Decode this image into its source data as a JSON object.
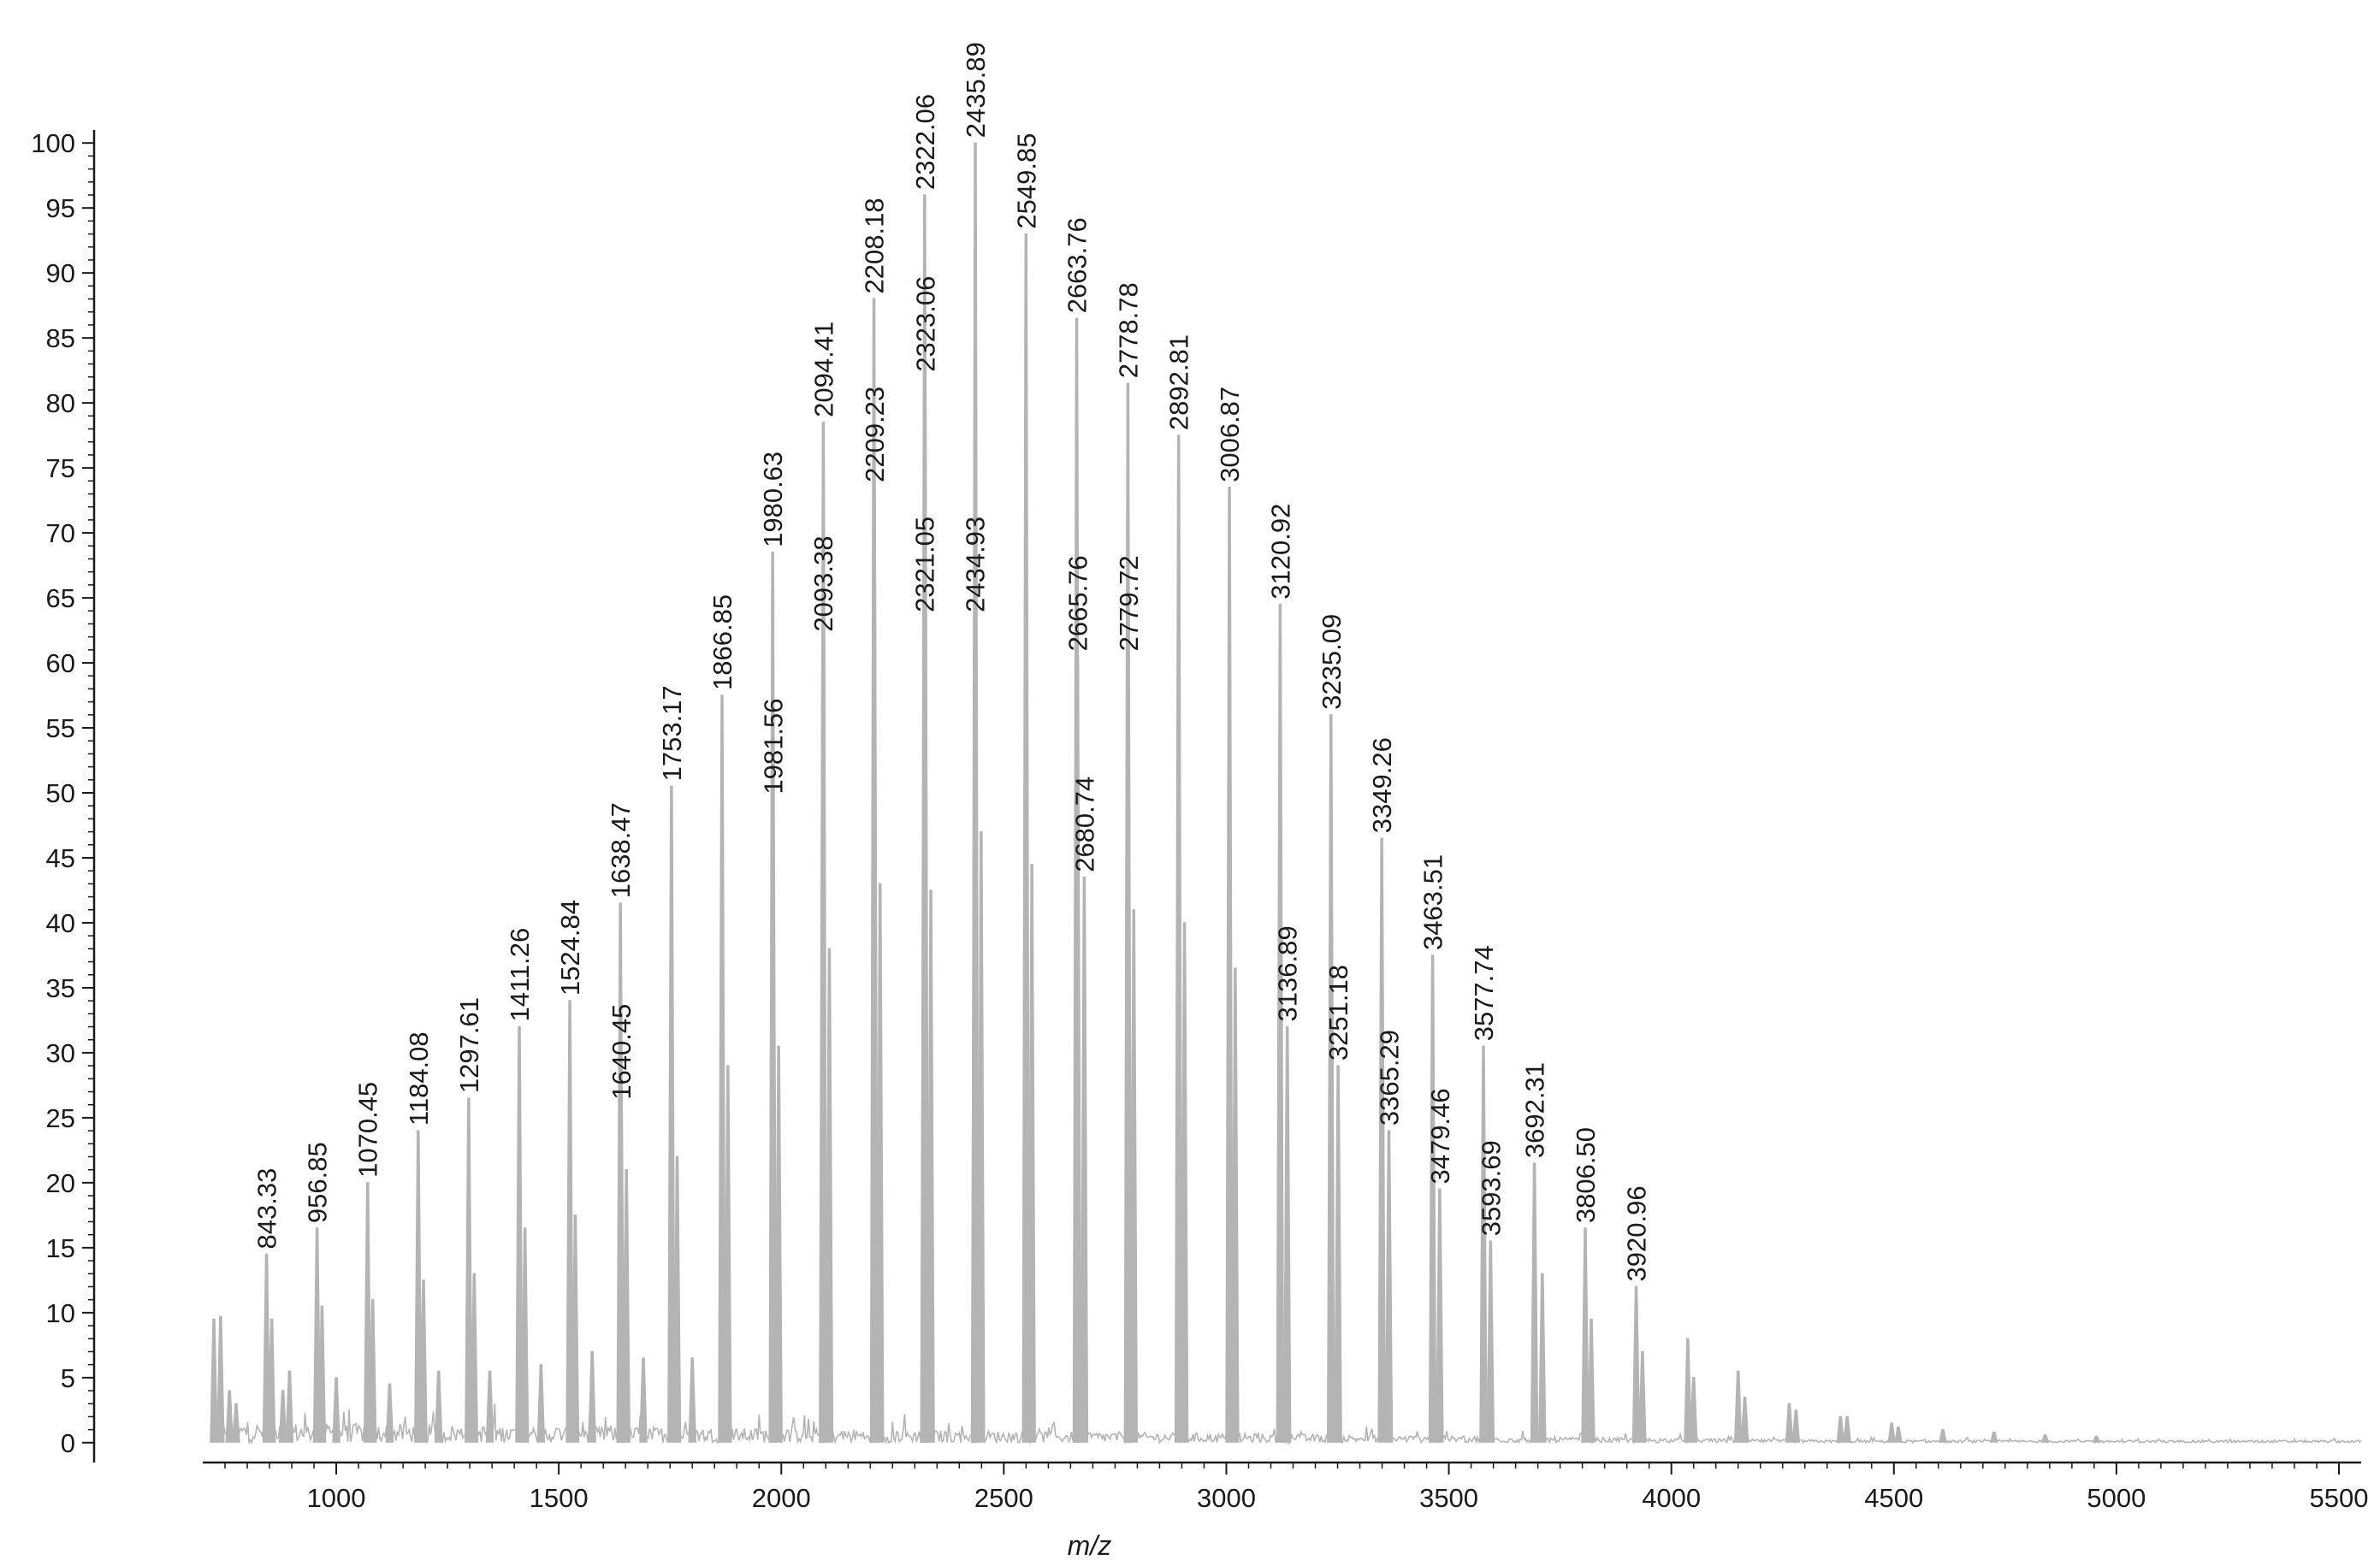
{
  "chart_data": {
    "type": "line",
    "subtype": "mass-spectrum",
    "title": "",
    "xlabel": "m/z",
    "ylabel": "",
    "xlim": [
      700,
      5550
    ],
    "ylim": [
      -1,
      101
    ],
    "x_ticks": [
      1000,
      1500,
      2000,
      2500,
      3000,
      3500,
      4000,
      4500,
      5000,
      5500
    ],
    "y_ticks": [
      0,
      5,
      10,
      15,
      20,
      25,
      30,
      35,
      40,
      45,
      50,
      55,
      60,
      65,
      70,
      75,
      80,
      85,
      90,
      95,
      100
    ],
    "grid": false,
    "legend": "none",
    "line_color": "#b4b4b4",
    "series": [
      {
        "peaks": [
          {
            "mz": 843.33,
            "intensity": 14.5,
            "label": "843.33"
          },
          {
            "mz": 956.85,
            "intensity": 16.5,
            "label": "956.85"
          },
          {
            "mz": 1070.45,
            "intensity": 20,
            "label": "1070.45"
          },
          {
            "mz": 1184.08,
            "intensity": 24,
            "label": "1184.08"
          },
          {
            "mz": 1297.61,
            "intensity": 26.5,
            "label": "1297.61"
          },
          {
            "mz": 1411.26,
            "intensity": 32,
            "label": "1411.26"
          },
          {
            "mz": 1524.84,
            "intensity": 34,
            "label": "1524.84"
          },
          {
            "mz": 1638.47,
            "intensity": 41.5,
            "label": "1638.47"
          },
          {
            "mz": 1640.45,
            "intensity": 26,
            "label": "1640.45"
          },
          {
            "mz": 1753.17,
            "intensity": 50.5,
            "label": "1753.17"
          },
          {
            "mz": 1866.85,
            "intensity": 57.5,
            "label": "1866.85"
          },
          {
            "mz": 1980.63,
            "intensity": 68.5,
            "label": "1980.63"
          },
          {
            "mz": 1981.56,
            "intensity": 49.5,
            "label": "1981.56"
          },
          {
            "mz": 2093.38,
            "intensity": 62,
            "label": "2093.38"
          },
          {
            "mz": 2094.41,
            "intensity": 78.5,
            "label": "2094.41"
          },
          {
            "mz": 2208.18,
            "intensity": 88,
            "label": "2208.18"
          },
          {
            "mz": 2209.23,
            "intensity": 73.5,
            "label": "2209.23"
          },
          {
            "mz": 2321.05,
            "intensity": 63.5,
            "label": "2321.05"
          },
          {
            "mz": 2322.06,
            "intensity": 96,
            "label": "2322.06"
          },
          {
            "mz": 2323.06,
            "intensity": 82,
            "label": "2323.06"
          },
          {
            "mz": 2434.93,
            "intensity": 63.5,
            "label": "2434.93"
          },
          {
            "mz": 2435.89,
            "intensity": 100,
            "label": "2435.89"
          },
          {
            "mz": 2549.85,
            "intensity": 93,
            "label": "2549.85"
          },
          {
            "mz": 2663.76,
            "intensity": 86.5,
            "label": "2663.76"
          },
          {
            "mz": 2665.76,
            "intensity": 60.5,
            "label": "2665.76"
          },
          {
            "mz": 2680.74,
            "intensity": 43.5,
            "label": "2680.74"
          },
          {
            "mz": 2778.78,
            "intensity": 81.5,
            "label": "2778.78"
          },
          {
            "mz": 2779.72,
            "intensity": 60.5,
            "label": "2779.72"
          },
          {
            "mz": 2892.81,
            "intensity": 77.5,
            "label": "2892.81"
          },
          {
            "mz": 3006.87,
            "intensity": 73.5,
            "label": "3006.87"
          },
          {
            "mz": 3120.92,
            "intensity": 64.5,
            "label": "3120.92"
          },
          {
            "mz": 3136.89,
            "intensity": 32,
            "label": "3136.89"
          },
          {
            "mz": 3235.09,
            "intensity": 56,
            "label": "3235.09"
          },
          {
            "mz": 3251.18,
            "intensity": 29,
            "label": "3251.18"
          },
          {
            "mz": 3349.26,
            "intensity": 46.5,
            "label": "3349.26"
          },
          {
            "mz": 3365.29,
            "intensity": 24,
            "label": "3365.29"
          },
          {
            "mz": 3463.51,
            "intensity": 37.5,
            "label": "3463.51"
          },
          {
            "mz": 3479.46,
            "intensity": 19.5,
            "label": "3479.46"
          },
          {
            "mz": 3577.74,
            "intensity": 30.5,
            "label": "3577.74"
          },
          {
            "mz": 3593.69,
            "intensity": 15.5,
            "label": "3593.69"
          },
          {
            "mz": 3692.31,
            "intensity": 21.5,
            "label": "3692.31"
          },
          {
            "mz": 3806.5,
            "intensity": 16.5,
            "label": "3806.50"
          },
          {
            "mz": 3920.96,
            "intensity": 12,
            "label": "3920.96"
          }
        ],
        "unlabeled_peaks": [
          {
            "mz": 725,
            "intensity": 9.5
          },
          {
            "mz": 740,
            "intensity": 9.7
          },
          {
            "mz": 760,
            "intensity": 4
          },
          {
            "mz": 775,
            "intensity": 3
          },
          {
            "mz": 855,
            "intensity": 9.5
          },
          {
            "mz": 880,
            "intensity": 4
          },
          {
            "mz": 895,
            "intensity": 5.5
          },
          {
            "mz": 968,
            "intensity": 10.5
          },
          {
            "mz": 1000,
            "intensity": 5
          },
          {
            "mz": 1082,
            "intensity": 11
          },
          {
            "mz": 1120,
            "intensity": 4.5
          },
          {
            "mz": 1196,
            "intensity": 12.5
          },
          {
            "mz": 1230,
            "intensity": 5.5
          },
          {
            "mz": 1310,
            "intensity": 13
          },
          {
            "mz": 1345,
            "intensity": 5.5
          },
          {
            "mz": 1424,
            "intensity": 16.5
          },
          {
            "mz": 1460,
            "intensity": 6
          },
          {
            "mz": 1537,
            "intensity": 17.5
          },
          {
            "mz": 1575,
            "intensity": 7
          },
          {
            "mz": 1652,
            "intensity": 21
          },
          {
            "mz": 1690,
            "intensity": 6.5
          },
          {
            "mz": 1766,
            "intensity": 22
          },
          {
            "mz": 1800,
            "intensity": 6.5
          },
          {
            "mz": 1880,
            "intensity": 29
          },
          {
            "mz": 1994,
            "intensity": 30.5
          },
          {
            "mz": 2108,
            "intensity": 38
          },
          {
            "mz": 2222,
            "intensity": 43
          },
          {
            "mz": 2336,
            "intensity": 42.5
          },
          {
            "mz": 2449,
            "intensity": 47
          },
          {
            "mz": 2563,
            "intensity": 44.5
          },
          {
            "mz": 2792,
            "intensity": 41
          },
          {
            "mz": 2906,
            "intensity": 40
          },
          {
            "mz": 3020,
            "intensity": 36.5
          },
          {
            "mz": 3710,
            "intensity": 13
          },
          {
            "mz": 3820,
            "intensity": 9.5
          },
          {
            "mz": 3935,
            "intensity": 7
          },
          {
            "mz": 4037,
            "intensity": 8
          },
          {
            "mz": 4050,
            "intensity": 5
          },
          {
            "mz": 4150,
            "intensity": 5.5
          },
          {
            "mz": 4165,
            "intensity": 3.5
          },
          {
            "mz": 4265,
            "intensity": 3
          },
          {
            "mz": 4280,
            "intensity": 2.5
          },
          {
            "mz": 4380,
            "intensity": 2
          },
          {
            "mz": 4395,
            "intensity": 2
          },
          {
            "mz": 4495,
            "intensity": 1.5
          },
          {
            "mz": 4510,
            "intensity": 1.2
          },
          {
            "mz": 4610,
            "intensity": 1
          },
          {
            "mz": 4725,
            "intensity": 0.8
          },
          {
            "mz": 4840,
            "intensity": 0.6
          },
          {
            "mz": 4955,
            "intensity": 0.5
          }
        ]
      }
    ]
  }
}
